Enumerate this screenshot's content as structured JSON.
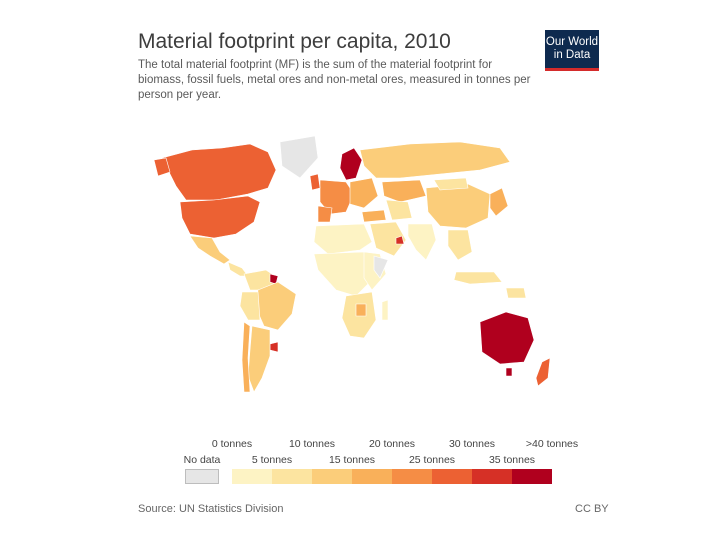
{
  "header": {
    "title": "Material footprint per capita, 2010",
    "subtitle": "The total material footprint (MF) is the sum of the material footprint for biomass, fossil fuels, metal ores and non-metal ores, measured in tonnes per person per year.",
    "logo_line1": "Our World",
    "logo_line2": "in Data"
  },
  "legend": {
    "no_data": "No data",
    "top_labels": [
      "0 tonnes",
      "10 tonnes",
      "20 tonnes",
      "30 tonnes",
      ">40 tonnes"
    ],
    "bottom_labels": [
      "5 tonnes",
      "15 tonnes",
      "25 tonnes",
      "35 tonnes"
    ],
    "colors": [
      "#fdf3c4",
      "#fce4a0",
      "#fbcd7a",
      "#f9b05a",
      "#f58d45",
      "#ec6133",
      "#d63026",
      "#b0001e"
    ],
    "no_data_color": "#e6e6e6"
  },
  "footer": {
    "source": "Source: UN Statistics Division",
    "license": "CC BY"
  }
}
